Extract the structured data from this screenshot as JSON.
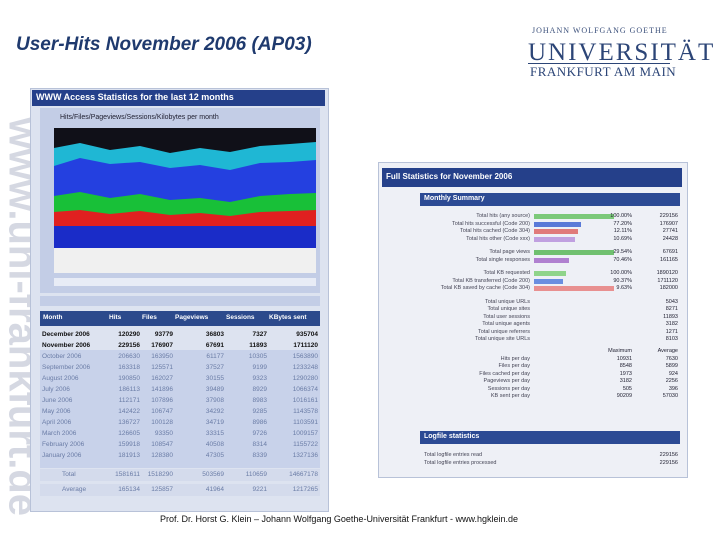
{
  "slide": {
    "title": "User-Hits November 2006 (AP03)",
    "logo": {
      "top": "JOHANN WOLFGANG GOETHE",
      "main": "UNIVERSITÄT",
      "sub": "FRANKFURT AM MAIN"
    },
    "watermark": "www.uni-frankfurt.de",
    "footer": "Prof. Dr. Horst G. Klein – Johann Wolfgang Goethe-Universität Frankfurt - www.hgklein.de"
  },
  "left": {
    "title": "WWW Access Statistics for the last 12 months",
    "chart_caption": "Hits/Files/Pageviews/Sessions/Kilobytes per month",
    "table": {
      "header": [
        "Month",
        "Hits",
        "Files",
        "Pageviews",
        "Sessions",
        "KBytes sent"
      ],
      "rows": [
        [
          "December 2006",
          "120290",
          "93779",
          "36803",
          "7327",
          "935704"
        ],
        [
          "November 2006",
          "229156",
          "176907",
          "67691",
          "11893",
          "1711120"
        ],
        [
          "October 2006",
          "206630",
          "163950",
          "61177",
          "10305",
          "1563890"
        ],
        [
          "September 2006",
          "163318",
          "125571",
          "37527",
          "9199",
          "1233248"
        ],
        [
          "August 2006",
          "190850",
          "162027",
          "30155",
          "9323",
          "1290280"
        ],
        [
          "July 2006",
          "186113",
          "141896",
          "39489",
          "8929",
          "1066374"
        ],
        [
          "June 2006",
          "112171",
          "107896",
          "37908",
          "8983",
          "1016161"
        ],
        [
          "May 2006",
          "142422",
          "106747",
          "34292",
          "9285",
          "1143578"
        ],
        [
          "April 2006",
          "136727",
          "100128",
          "34719",
          "8986",
          "1103591"
        ],
        [
          "March 2006",
          "126605",
          "93350",
          "33315",
          "9726",
          "1009157"
        ],
        [
          "February 2006",
          "159918",
          "108547",
          "40508",
          "8314",
          "1155722"
        ],
        [
          "January 2006",
          "181913",
          "128380",
          "47305",
          "8339",
          "1327136"
        ]
      ],
      "totals": [
        [
          "Total",
          "1581611",
          "1518290",
          "503569",
          "110659",
          "14667178"
        ],
        [
          "Average",
          "165134",
          "125857",
          "41964",
          "9221",
          "1217265"
        ]
      ]
    }
  },
  "right": {
    "title": "Full Statistics for November 2006",
    "section": "Monthly Summary",
    "summary": [
      [
        "Total hits (any source)",
        "100.00%",
        "229156"
      ],
      [
        "Total hits successful (Code 200)",
        "77.20%",
        "176907"
      ],
      [
        "Total hits cached (Code 304)",
        "12.11%",
        "27741"
      ],
      [
        "Total hits other (Code xxx)",
        "10.69%",
        "24428"
      ],
      [
        "Total page views",
        "29.54%",
        "67691"
      ],
      [
        "Total single responses",
        "70.46%",
        "161165"
      ],
      [
        "Total KB requested",
        "100.00%",
        "1890120"
      ],
      [
        "Total KB transferred (Code 200)",
        "90.37%",
        "1711120"
      ],
      [
        "Total KB saved by cache (Code 304)",
        "9.63%",
        "182000"
      ]
    ],
    "counts": [
      [
        "Total unique URLs",
        "5043"
      ],
      [
        "Total unique sites",
        "8271"
      ],
      [
        "Total user sessions",
        "11893"
      ],
      [
        "Total unique agents",
        "3182"
      ],
      [
        "Total unique referrers",
        "1271"
      ],
      [
        "Total unique site URLs",
        "8103"
      ]
    ],
    "perday_header": [
      "Maximum",
      "Average"
    ],
    "perday": [
      [
        "Hits per day",
        "10931",
        "7630"
      ],
      [
        "Files per day",
        "8548",
        "5899"
      ],
      [
        "Files cached per day",
        "1973",
        "924"
      ],
      [
        "Pageviews per day",
        "3182",
        "2256"
      ],
      [
        "Sessions per day",
        "505",
        "396"
      ],
      [
        "KB sent per day",
        "90209",
        "57030"
      ]
    ],
    "logfile": {
      "title": "Logfile statistics",
      "rows": [
        [
          "Total logfile entries read",
          "229156"
        ],
        [
          "Total logfile entries processed",
          "229156"
        ]
      ]
    }
  }
}
